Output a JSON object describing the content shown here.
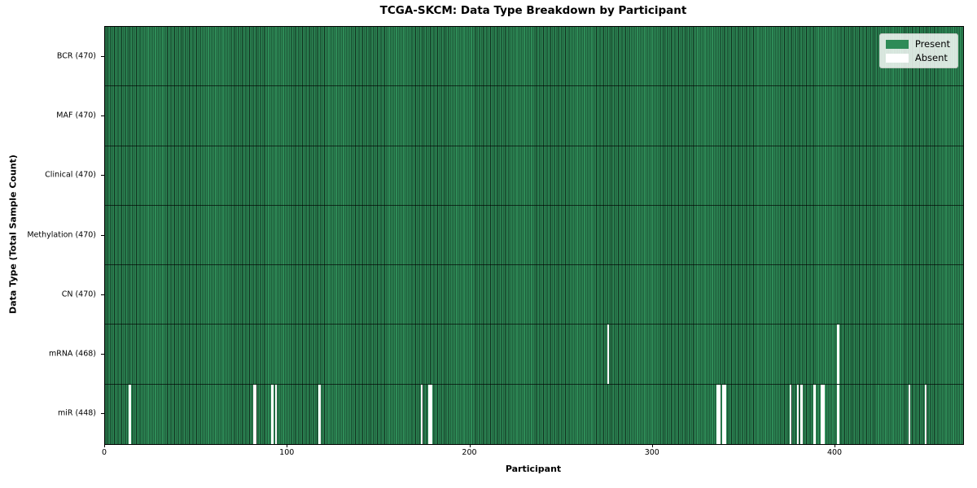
{
  "chart_data": {
    "type": "heatmap",
    "title": "TCGA-SKCM: Data Type Breakdown by Participant",
    "xlabel": "Participant",
    "ylabel": "Data Type (Total Sample Count)",
    "x_range": [
      0,
      470
    ],
    "x_ticks": [
      0,
      100,
      200,
      300,
      400
    ],
    "grid": false,
    "legend_position": "upper-right",
    "legend": [
      {
        "label": "Present",
        "color": "#2e8b57"
      },
      {
        "label": "Absent",
        "color": "#ffffff"
      }
    ],
    "colors": {
      "present": "#2e8b57",
      "absent": "#ffffff",
      "bar_edge": "#0f2c1c",
      "row_separator": "#000000"
    },
    "rows": [
      {
        "label": "BCR (470)",
        "data_type": "BCR",
        "total": 470,
        "absent_participants": []
      },
      {
        "label": "MAF (470)",
        "data_type": "MAF",
        "total": 470,
        "absent_participants": []
      },
      {
        "label": "Clinical (470)",
        "data_type": "Clinical",
        "total": 470,
        "absent_participants": []
      },
      {
        "label": "Methylation (470)",
        "data_type": "Methylation",
        "total": 470,
        "absent_participants": []
      },
      {
        "label": "CN (470)",
        "data_type": "CN",
        "total": 470,
        "absent_participants": []
      },
      {
        "label": "mRNA (468)",
        "data_type": "mRNA",
        "total": 468,
        "absent_participants": [
          275,
          401
        ]
      },
      {
        "label": "miR (448)",
        "data_type": "miR",
        "total": 448,
        "absent_participants": [
          13,
          81,
          82,
          91,
          93,
          117,
          173,
          177,
          178,
          335,
          336,
          338,
          339,
          375,
          379,
          381,
          388,
          392,
          393,
          401,
          440,
          449
        ]
      }
    ]
  }
}
